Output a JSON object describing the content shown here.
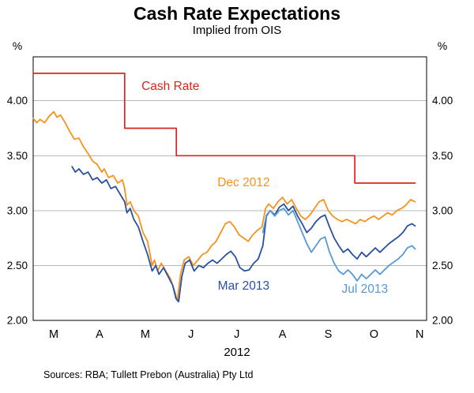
{
  "page": {
    "title": "Cash Rate Expectations",
    "subtitle": "Implied from OIS",
    "year_label": "2012",
    "source_note": "Sources: RBA; Tullett Prebon (Australia) Pty Ltd",
    "unit_left": "%",
    "unit_right": "%"
  },
  "chart_data": {
    "type": "line",
    "title": "Cash Rate Expectations",
    "subtitle": "Implied from OIS",
    "xlabel": "2012",
    "ylabel": "%",
    "x_unit": "months since 1 Mar 2012",
    "xlim": [
      0,
      8.6
    ],
    "ylim": [
      2.0,
      4.4
    ],
    "grid": true,
    "gridlines": [
      2.5,
      3.0,
      3.5,
      4.0
    ],
    "yticks": [
      2.0,
      2.5,
      3.0,
      3.5,
      4.0
    ],
    "xticks": [
      {
        "x": 0.45,
        "label": "M"
      },
      {
        "x": 1.45,
        "label": "A"
      },
      {
        "x": 2.45,
        "label": "M"
      },
      {
        "x": 3.45,
        "label": "J"
      },
      {
        "x": 4.45,
        "label": "J"
      },
      {
        "x": 5.45,
        "label": "A"
      },
      {
        "x": 6.45,
        "label": "S"
      },
      {
        "x": 7.45,
        "label": "O"
      },
      {
        "x": 8.45,
        "label": "N"
      }
    ],
    "series": [
      {
        "name": "Cash Rate",
        "color": "#d9261c",
        "width": 1.7,
        "points": [
          [
            0,
            4.25
          ],
          [
            2.0,
            4.25
          ],
          [
            2.0,
            3.75
          ],
          [
            3.13,
            3.75
          ],
          [
            3.13,
            3.5
          ],
          [
            7.03,
            3.5
          ],
          [
            7.03,
            3.25
          ],
          [
            8.35,
            3.25
          ]
        ]
      },
      {
        "name": "Dec 2012",
        "color": "#f6921e",
        "width": 1.8,
        "points": [
          [
            0.0,
            3.84
          ],
          [
            0.08,
            3.8
          ],
          [
            0.15,
            3.83
          ],
          [
            0.25,
            3.8
          ],
          [
            0.35,
            3.86
          ],
          [
            0.45,
            3.9
          ],
          [
            0.52,
            3.85
          ],
          [
            0.6,
            3.87
          ],
          [
            0.7,
            3.8
          ],
          [
            0.8,
            3.72
          ],
          [
            0.9,
            3.65
          ],
          [
            1.0,
            3.66
          ],
          [
            1.1,
            3.58
          ],
          [
            1.2,
            3.52
          ],
          [
            1.3,
            3.45
          ],
          [
            1.4,
            3.42
          ],
          [
            1.5,
            3.35
          ],
          [
            1.55,
            3.38
          ],
          [
            1.65,
            3.3
          ],
          [
            1.75,
            3.32
          ],
          [
            1.85,
            3.25
          ],
          [
            1.95,
            3.28
          ],
          [
            2.0,
            3.2
          ],
          [
            2.05,
            3.05
          ],
          [
            2.12,
            3.08
          ],
          [
            2.2,
            3.0
          ],
          [
            2.3,
            2.95
          ],
          [
            2.4,
            2.8
          ],
          [
            2.5,
            2.72
          ],
          [
            2.6,
            2.5
          ],
          [
            2.65,
            2.55
          ],
          [
            2.72,
            2.45
          ],
          [
            2.8,
            2.52
          ],
          [
            2.9,
            2.45
          ],
          [
            3.0,
            2.38
          ],
          [
            3.08,
            2.28
          ],
          [
            3.15,
            2.18
          ],
          [
            3.22,
            2.42
          ],
          [
            3.3,
            2.55
          ],
          [
            3.4,
            2.58
          ],
          [
            3.5,
            2.5
          ],
          [
            3.6,
            2.55
          ],
          [
            3.7,
            2.6
          ],
          [
            3.8,
            2.62
          ],
          [
            3.9,
            2.68
          ],
          [
            4.0,
            2.72
          ],
          [
            4.1,
            2.8
          ],
          [
            4.2,
            2.88
          ],
          [
            4.3,
            2.9
          ],
          [
            4.4,
            2.85
          ],
          [
            4.5,
            2.78
          ],
          [
            4.6,
            2.75
          ],
          [
            4.7,
            2.72
          ],
          [
            4.8,
            2.78
          ],
          [
            4.9,
            2.82
          ],
          [
            5.0,
            2.85
          ],
          [
            5.08,
            3.02
          ],
          [
            5.15,
            3.06
          ],
          [
            5.25,
            3.02
          ],
          [
            5.35,
            3.08
          ],
          [
            5.45,
            3.12
          ],
          [
            5.55,
            3.06
          ],
          [
            5.65,
            3.1
          ],
          [
            5.75,
            3.02
          ],
          [
            5.85,
            2.95
          ],
          [
            5.95,
            2.92
          ],
          [
            6.05,
            2.96
          ],
          [
            6.15,
            3.02
          ],
          [
            6.25,
            3.08
          ],
          [
            6.35,
            3.1
          ],
          [
            6.45,
            3.0
          ],
          [
            6.55,
            2.95
          ],
          [
            6.65,
            2.92
          ],
          [
            6.75,
            2.9
          ],
          [
            6.85,
            2.92
          ],
          [
            6.95,
            2.9
          ],
          [
            7.05,
            2.88
          ],
          [
            7.15,
            2.92
          ],
          [
            7.25,
            2.9
          ],
          [
            7.35,
            2.93
          ],
          [
            7.45,
            2.95
          ],
          [
            7.55,
            2.92
          ],
          [
            7.65,
            2.95
          ],
          [
            7.75,
            2.98
          ],
          [
            7.85,
            2.96
          ],
          [
            7.95,
            3.0
          ],
          [
            8.05,
            3.02
          ],
          [
            8.15,
            3.05
          ],
          [
            8.25,
            3.1
          ],
          [
            8.35,
            3.08
          ]
        ]
      },
      {
        "name": "Mar 2013",
        "color": "#28519e",
        "width": 1.8,
        "points": [
          [
            0.85,
            3.4
          ],
          [
            0.92,
            3.35
          ],
          [
            1.0,
            3.38
          ],
          [
            1.1,
            3.33
          ],
          [
            1.2,
            3.35
          ],
          [
            1.3,
            3.28
          ],
          [
            1.4,
            3.3
          ],
          [
            1.5,
            3.25
          ],
          [
            1.6,
            3.28
          ],
          [
            1.7,
            3.2
          ],
          [
            1.8,
            3.22
          ],
          [
            1.9,
            3.15
          ],
          [
            2.0,
            3.08
          ],
          [
            2.05,
            2.98
          ],
          [
            2.12,
            3.02
          ],
          [
            2.2,
            2.92
          ],
          [
            2.3,
            2.85
          ],
          [
            2.4,
            2.72
          ],
          [
            2.5,
            2.6
          ],
          [
            2.6,
            2.45
          ],
          [
            2.68,
            2.5
          ],
          [
            2.75,
            2.42
          ],
          [
            2.85,
            2.48
          ],
          [
            2.95,
            2.4
          ],
          [
            3.05,
            2.32
          ],
          [
            3.12,
            2.2
          ],
          [
            3.18,
            2.17
          ],
          [
            3.25,
            2.4
          ],
          [
            3.32,
            2.52
          ],
          [
            3.42,
            2.55
          ],
          [
            3.52,
            2.45
          ],
          [
            3.62,
            2.5
          ],
          [
            3.72,
            2.48
          ],
          [
            3.82,
            2.52
          ],
          [
            3.92,
            2.55
          ],
          [
            4.02,
            2.52
          ],
          [
            4.12,
            2.56
          ],
          [
            4.22,
            2.6
          ],
          [
            4.32,
            2.63
          ],
          [
            4.42,
            2.58
          ],
          [
            4.52,
            2.48
          ],
          [
            4.62,
            2.45
          ],
          [
            4.72,
            2.46
          ],
          [
            4.82,
            2.52
          ],
          [
            4.92,
            2.56
          ],
          [
            5.02,
            2.68
          ],
          [
            5.1,
            2.95
          ],
          [
            5.18,
            3.0
          ],
          [
            5.28,
            2.96
          ],
          [
            5.38,
            3.03
          ],
          [
            5.48,
            3.06
          ],
          [
            5.58,
            3.0
          ],
          [
            5.68,
            3.04
          ],
          [
            5.78,
            2.95
          ],
          [
            5.88,
            2.88
          ],
          [
            5.98,
            2.8
          ],
          [
            6.08,
            2.84
          ],
          [
            6.18,
            2.9
          ],
          [
            6.28,
            2.94
          ],
          [
            6.38,
            2.96
          ],
          [
            6.48,
            2.85
          ],
          [
            6.58,
            2.75
          ],
          [
            6.68,
            2.68
          ],
          [
            6.78,
            2.62
          ],
          [
            6.88,
            2.65
          ],
          [
            6.98,
            2.6
          ],
          [
            7.08,
            2.56
          ],
          [
            7.18,
            2.62
          ],
          [
            7.28,
            2.58
          ],
          [
            7.38,
            2.62
          ],
          [
            7.48,
            2.66
          ],
          [
            7.58,
            2.62
          ],
          [
            7.68,
            2.66
          ],
          [
            7.78,
            2.7
          ],
          [
            7.88,
            2.73
          ],
          [
            7.98,
            2.76
          ],
          [
            8.08,
            2.8
          ],
          [
            8.18,
            2.86
          ],
          [
            8.28,
            2.88
          ],
          [
            8.35,
            2.86
          ]
        ]
      },
      {
        "name": "Jul 2013",
        "color": "#5599d8",
        "width": 1.8,
        "points": [
          [
            5.02,
            2.8
          ],
          [
            5.1,
            2.96
          ],
          [
            5.18,
            3.0
          ],
          [
            5.28,
            2.95
          ],
          [
            5.38,
            3.0
          ],
          [
            5.48,
            3.02
          ],
          [
            5.58,
            2.96
          ],
          [
            5.68,
            3.0
          ],
          [
            5.78,
            2.9
          ],
          [
            5.88,
            2.8
          ],
          [
            5.98,
            2.7
          ],
          [
            6.08,
            2.62
          ],
          [
            6.18,
            2.68
          ],
          [
            6.28,
            2.74
          ],
          [
            6.38,
            2.76
          ],
          [
            6.48,
            2.62
          ],
          [
            6.58,
            2.52
          ],
          [
            6.68,
            2.45
          ],
          [
            6.78,
            2.42
          ],
          [
            6.88,
            2.46
          ],
          [
            6.98,
            2.42
          ],
          [
            7.08,
            2.36
          ],
          [
            7.18,
            2.42
          ],
          [
            7.28,
            2.38
          ],
          [
            7.38,
            2.42
          ],
          [
            7.48,
            2.46
          ],
          [
            7.58,
            2.42
          ],
          [
            7.68,
            2.46
          ],
          [
            7.78,
            2.5
          ],
          [
            7.88,
            2.53
          ],
          [
            7.98,
            2.56
          ],
          [
            8.08,
            2.6
          ],
          [
            8.18,
            2.66
          ],
          [
            8.28,
            2.68
          ],
          [
            8.35,
            2.65
          ]
        ]
      }
    ],
    "annotations": [
      {
        "text": "Cash Rate",
        "x": 3.0,
        "y": 4.1,
        "color": "#d9261c"
      },
      {
        "text": "Dec 2012",
        "x": 4.6,
        "y": 3.22,
        "color": "#f6921e"
      },
      {
        "text": "Mar 2013",
        "x": 4.6,
        "y": 2.28,
        "color": "#28519e"
      },
      {
        "text": "Jul 2013",
        "x": 7.25,
        "y": 2.25,
        "color": "#5599d8"
      }
    ],
    "legend_position": "inline-annotations"
  }
}
